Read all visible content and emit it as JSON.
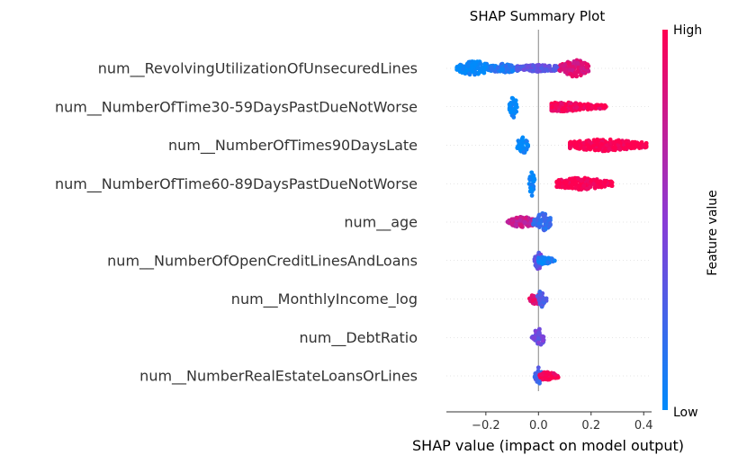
{
  "chart_data": {
    "type": "scatter",
    "subtype": "shap-beeswarm",
    "title": "SHAP Summary Plot",
    "xlabel": "SHAP value (impact on model output)",
    "xlim": [
      -0.35,
      0.43
    ],
    "xticks": [
      -0.2,
      0.0,
      0.2,
      0.4
    ],
    "xtick_labels": [
      "−0.2",
      "0.0",
      "0.2",
      "0.4"
    ],
    "grid": false,
    "colorbar": {
      "label": "Feature value",
      "high_label": "High",
      "low_label": "Low",
      "low_color": "#008bfb",
      "high_color": "#ff0051"
    },
    "features": [
      {
        "name": "num__RevolvingUtilizationOfUnsecuredLines",
        "clusters": [
          {
            "min": -0.31,
            "max": -0.18,
            "center": -0.24,
            "spread": 0.45,
            "value": 0.0
          },
          {
            "min": -0.18,
            "max": -0.08,
            "center": -0.13,
            "spread": 0.25,
            "value": 0.12
          },
          {
            "min": -0.08,
            "max": 0.08,
            "center": 0.0,
            "spread": 0.15,
            "value": 0.35
          },
          {
            "min": 0.08,
            "max": 0.19,
            "center": 0.14,
            "spread": 0.55,
            "value": 0.85
          }
        ]
      },
      {
        "name": "num__NumberOfTime30-59DaysPastDueNotWorse",
        "clusters": [
          {
            "min": -0.11,
            "max": -0.08,
            "center": -0.095,
            "spread": 0.75,
            "value": 0.02
          },
          {
            "min": 0.05,
            "max": 0.26,
            "center": 0.1,
            "spread": 0.25,
            "value": 0.95
          }
        ]
      },
      {
        "name": "num__NumberOfTimes90DaysLate",
        "clusters": [
          {
            "min": -0.08,
            "max": -0.04,
            "center": -0.06,
            "spread": 0.6,
            "value": 0.02
          },
          {
            "min": 0.12,
            "max": 0.41,
            "center": 0.25,
            "spread": 0.35,
            "value": 1.0
          }
        ]
      },
      {
        "name": "num__NumberOfTime60-89DaysPastDueNotWorse",
        "clusters": [
          {
            "min": -0.035,
            "max": -0.015,
            "center": -0.025,
            "spread": 0.9,
            "value": 0.02
          },
          {
            "min": 0.07,
            "max": 0.28,
            "center": 0.16,
            "spread": 0.35,
            "value": 1.0
          }
        ]
      },
      {
        "name": "num__age",
        "clusters": [
          {
            "min": -0.12,
            "max": -0.02,
            "center": -0.06,
            "spread": 0.3,
            "value": 0.75
          },
          {
            "min": -0.02,
            "max": 0.045,
            "center": 0.015,
            "spread": 0.6,
            "value": 0.2
          }
        ]
      },
      {
        "name": "num__NumberOfOpenCreditLinesAndLoans",
        "clusters": [
          {
            "min": -0.015,
            "max": 0.015,
            "center": 0.0,
            "spread": 0.6,
            "value": 0.35
          },
          {
            "min": 0.0,
            "max": 0.065,
            "center": 0.02,
            "spread": 0.15,
            "value": 0.08
          }
        ]
      },
      {
        "name": "num__MonthlyIncome_log",
        "clusters": [
          {
            "min": -0.035,
            "max": 0.0,
            "center": -0.01,
            "spread": 0.45,
            "value": 0.9
          },
          {
            "min": -0.005,
            "max": 0.03,
            "center": 0.01,
            "spread": 0.55,
            "value": 0.3
          }
        ]
      },
      {
        "name": "num__DebtRatio",
        "clusters": [
          {
            "min": -0.025,
            "max": 0.02,
            "center": 0.0,
            "spread": 0.6,
            "value": 0.4
          }
        ]
      },
      {
        "name": "num__NumberRealEstateLoansOrLines",
        "clusters": [
          {
            "min": -0.015,
            "max": 0.015,
            "center": 0.0,
            "spread": 0.55,
            "value": 0.25
          },
          {
            "min": 0.005,
            "max": 0.075,
            "center": 0.03,
            "spread": 0.2,
            "value": 0.95
          }
        ]
      }
    ]
  }
}
